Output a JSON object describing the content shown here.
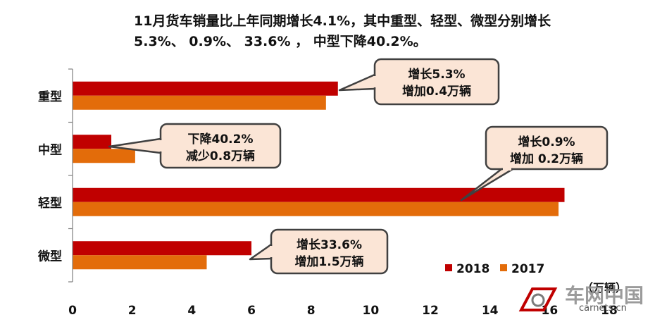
{
  "headline": {
    "line1": "11月货车销量比上年同期增长4.1%，其中重型、轻型、微型分别增长",
    "line2": "5.3%、 0.9%、 33.6% ， 中型下降40.2%。"
  },
  "chart_data": {
    "type": "bar",
    "orientation": "horizontal",
    "categories": [
      "重型",
      "中型",
      "轻型",
      "微型"
    ],
    "series": [
      {
        "name": "2018",
        "color": "#c00000",
        "values": [
          8.9,
          1.3,
          16.5,
          6.0
        ]
      },
      {
        "name": "2017",
        "color": "#e36c0a",
        "values": [
          8.5,
          2.1,
          16.3,
          4.5
        ]
      }
    ],
    "xlim": [
      0,
      18
    ],
    "xticks": [
      "0",
      "2",
      "4",
      "6",
      "8",
      "10",
      "12",
      "14",
      "16",
      "18"
    ],
    "unit": "（万辆）",
    "legend_position": "bottom-right",
    "grid": false,
    "annotations": [
      {
        "category": "重型",
        "lines": [
          "增长5.3%",
          "增加0.4万辆"
        ]
      },
      {
        "category": "中型",
        "lines": [
          "下降40.2%",
          "减少0.8万辆"
        ]
      },
      {
        "category": "轻型",
        "lines": [
          "增长0.9%",
          "增加 0.2万辆"
        ]
      },
      {
        "category": "微型",
        "lines": [
          "增长33.6%",
          "增加1.5万辆"
        ]
      }
    ],
    "callout_style": {
      "fill": "#fbe5d6",
      "stroke": "#404040"
    }
  },
  "watermark": {
    "name": "车网中国",
    "url": "carnets.cn"
  }
}
